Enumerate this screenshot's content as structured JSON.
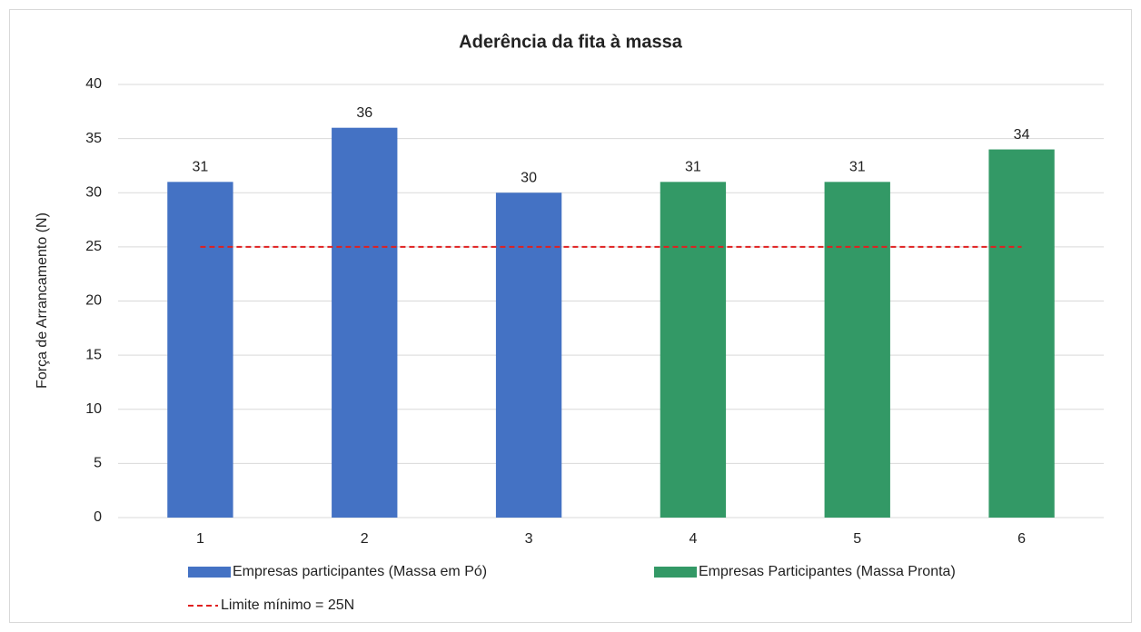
{
  "chart_data": {
    "type": "bar",
    "title": "Aderência da fita à massa",
    "y_label": "Força de Arrancamento (N)",
    "categories": [
      "1",
      "2",
      "3",
      "4",
      "5",
      "6"
    ],
    "series": [
      {
        "name": "Empresas participantes (Massa em Pó)",
        "color": "#4472c4",
        "values": [
          31,
          36,
          30,
          null,
          null,
          null
        ]
      },
      {
        "name": "Empresas Participantes (Massa Pronta)",
        "color": "#339966",
        "values": [
          null,
          null,
          null,
          31,
          31,
          34
        ]
      },
      {
        "name": "Limite mínimo = 25N",
        "color": "#e02020",
        "type": "line",
        "dashed": true,
        "values": [
          25,
          25,
          25,
          25,
          25,
          25
        ]
      }
    ],
    "ylim": [
      0,
      40
    ],
    "yticks": [
      0,
      5,
      10,
      15,
      20,
      25,
      30,
      35,
      40
    ],
    "grid": true,
    "data_labels": true,
    "legend": "bottom"
  }
}
